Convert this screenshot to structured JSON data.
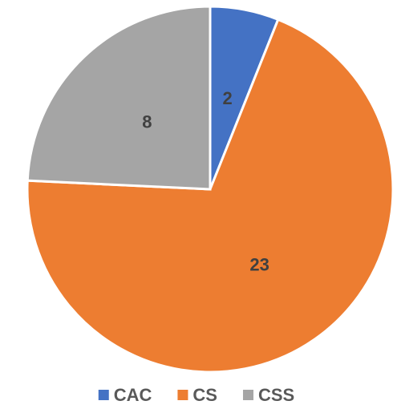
{
  "chart_data": {
    "type": "pie",
    "categories": [
      "CAC",
      "CS",
      "CSS"
    ],
    "values": [
      2,
      23,
      8
    ],
    "colors": [
      "#4472c4",
      "#ed7d31",
      "#a5a5a5"
    ],
    "legend": "bottom"
  }
}
